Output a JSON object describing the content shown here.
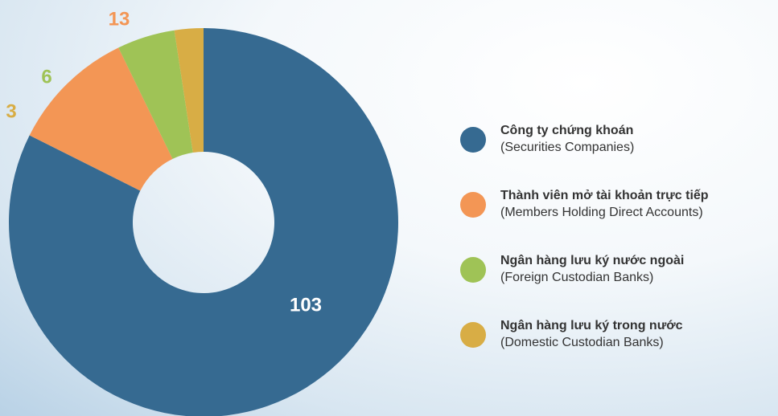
{
  "chart_data": {
    "type": "donut",
    "categories": [
      "Công ty chứng khoán",
      "Thành viên mở tài khoản trực tiếp",
      "Ngân hàng lưu ký nước ngoài",
      "Ngân hàng lưu ký trong nước"
    ],
    "descriptions": [
      "(Securities Companies)",
      "(Members Holding Direct Accounts)",
      "(Foreign Custodian Banks)",
      "(Domestic Custodian Banks)"
    ],
    "values": [
      103,
      13,
      6,
      3
    ],
    "colors": [
      "#366a91",
      "#f39655",
      "#9fc356",
      "#d8ad45"
    ],
    "legend": "right"
  }
}
